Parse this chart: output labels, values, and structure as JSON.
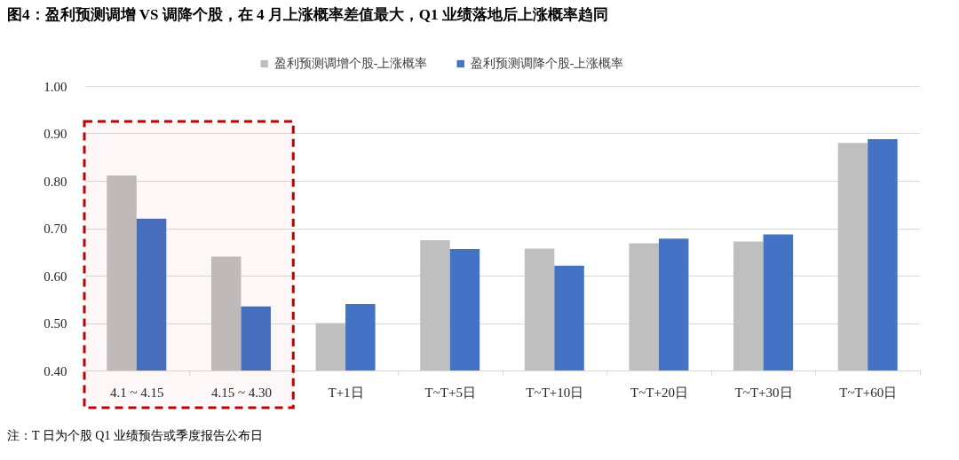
{
  "chart_data": {
    "type": "bar",
    "title": "图4：盈利预测调增 VS 调降个股，在 4 月上涨概率差值最大，Q1 业绩落地后上涨概率趋同",
    "categories": [
      "4.1 ~ 4.15",
      "4.15 ~ 4.30",
      "T+1日",
      "T~T+5日",
      "T~T+10日",
      "T~T+20日",
      "T~T+30日",
      "T~T+60日"
    ],
    "series": [
      {
        "name": "盈利预测调增个股-上涨概率",
        "color": "#bfbfbf",
        "values": [
          0.811,
          0.64,
          0.5,
          0.675,
          0.657,
          0.668,
          0.672,
          0.88
        ]
      },
      {
        "name": "盈利预测调降个股-上涨概率",
        "color": "#4472c4",
        "values": [
          0.72,
          0.535,
          0.54,
          0.656,
          0.621,
          0.678,
          0.687,
          0.888
        ]
      }
    ],
    "ylim": [
      0.4,
      1.0
    ],
    "yticks": [
      {
        "value": 0.4,
        "label": "0.40"
      },
      {
        "value": 0.5,
        "label": "0.50"
      },
      {
        "value": 0.6,
        "label": "0.60"
      },
      {
        "value": 0.7,
        "label": "0.70"
      },
      {
        "value": 0.8,
        "label": "0.80"
      },
      {
        "value": 0.9,
        "label": "0.90"
      },
      {
        "value": 1.0,
        "label": "1.00"
      }
    ],
    "grid": "y",
    "legend": "top",
    "bands": [
      {
        "axis": "x",
        "from": "4.1 ~ 4.15",
        "to": "4.15 ~ 4.30",
        "color": "#c00000"
      }
    ],
    "annotations": [
      "注：T 日为个股 Q1 业绩预告或季度报告公布日"
    ]
  }
}
